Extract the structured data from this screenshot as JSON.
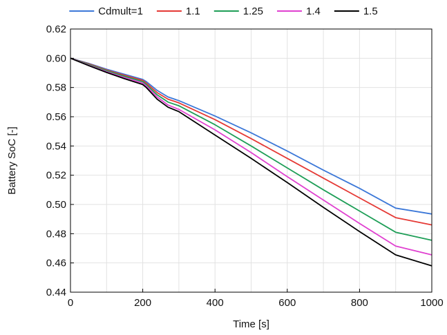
{
  "chart_data": {
    "type": "line",
    "xlabel": "Time [s]",
    "ylabel": "Battery SoC [-]",
    "xlim": [
      0,
      1000
    ],
    "ylim": [
      0.44,
      0.62
    ],
    "xticks": [
      0,
      200,
      400,
      600,
      800,
      1000
    ],
    "xtick_labels": [
      "0",
      "200",
      "400",
      "600",
      "800",
      "1000"
    ],
    "yticks": [
      0.44,
      0.46,
      0.48,
      0.5,
      0.52,
      0.54,
      0.56,
      0.58,
      0.6,
      0.62
    ],
    "ytick_labels": [
      "0.44",
      "0.46",
      "0.48",
      "0.50",
      "0.52",
      "0.54",
      "0.56",
      "0.58",
      "0.60",
      "0.62"
    ],
    "grid": true,
    "legend_position": "top",
    "series": [
      {
        "name": "Cdmult=1",
        "color": "#3c78d8",
        "x": [
          0,
          50,
          100,
          150,
          200,
          210,
          240,
          270,
          300,
          400,
          500,
          600,
          700,
          800,
          900,
          1000
        ],
        "y": [
          0.6,
          0.5965,
          0.5925,
          0.589,
          0.5855,
          0.584,
          0.578,
          0.5735,
          0.571,
          0.5605,
          0.549,
          0.5365,
          0.5235,
          0.511,
          0.4975,
          0.4935
        ]
      },
      {
        "name": "1.1",
        "color": "#e53935",
        "x": [
          0,
          50,
          100,
          150,
          200,
          210,
          240,
          270,
          300,
          400,
          500,
          600,
          700,
          800,
          900,
          1000
        ],
        "y": [
          0.6,
          0.5962,
          0.592,
          0.5883,
          0.5848,
          0.583,
          0.5765,
          0.572,
          0.5695,
          0.558,
          0.545,
          0.5315,
          0.518,
          0.5045,
          0.491,
          0.486
        ]
      },
      {
        "name": "1.25",
        "color": "#1e9e57",
        "x": [
          0,
          50,
          100,
          150,
          200,
          210,
          240,
          270,
          300,
          400,
          500,
          600,
          700,
          800,
          900,
          1000
        ],
        "y": [
          0.6,
          0.5958,
          0.5915,
          0.5876,
          0.584,
          0.582,
          0.575,
          0.57,
          0.5675,
          0.5545,
          0.54,
          0.525,
          0.51,
          0.4955,
          0.481,
          0.4755
        ]
      },
      {
        "name": "1.4",
        "color": "#e040d0",
        "x": [
          0,
          50,
          100,
          150,
          200,
          210,
          240,
          270,
          300,
          400,
          500,
          600,
          700,
          800,
          900,
          1000
        ],
        "y": [
          0.6,
          0.5953,
          0.5908,
          0.5867,
          0.583,
          0.581,
          0.5735,
          0.568,
          0.565,
          0.551,
          0.5355,
          0.519,
          0.503,
          0.487,
          0.4715,
          0.4655
        ]
      },
      {
        "name": "1.5",
        "color": "#000000",
        "x": [
          0,
          50,
          100,
          150,
          200,
          210,
          240,
          270,
          300,
          400,
          500,
          600,
          700,
          800,
          900,
          1000
        ],
        "y": [
          0.6,
          0.595,
          0.5903,
          0.586,
          0.582,
          0.58,
          0.572,
          0.5665,
          0.5635,
          0.5475,
          0.5315,
          0.515,
          0.498,
          0.4815,
          0.4655,
          0.458
        ]
      }
    ]
  }
}
